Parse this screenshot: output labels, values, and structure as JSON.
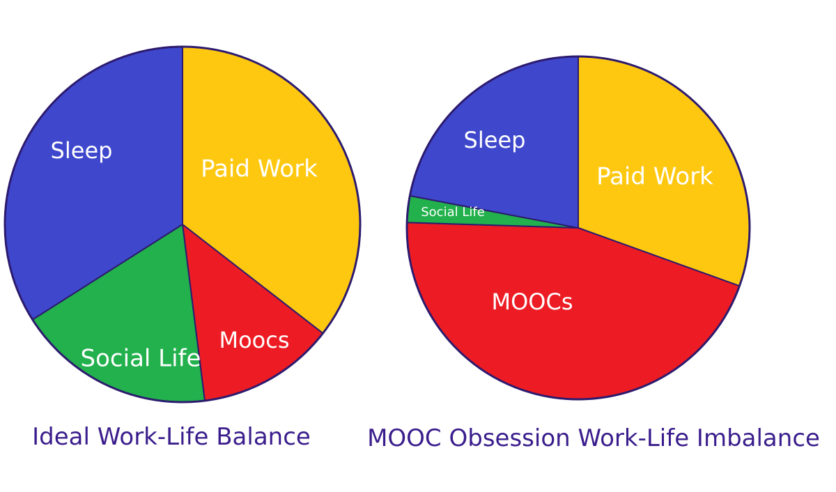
{
  "chart_data": [
    {
      "type": "pie",
      "title": "Ideal Work-Life Balance",
      "start_angle_deg": 0,
      "direction": "clockwise",
      "slices": [
        {
          "label": "Paid Work",
          "value": 35.5,
          "color": "#fec811"
        },
        {
          "label": "Moocs",
          "value": 12.5,
          "color": "#ed1c24"
        },
        {
          "label": "Social Life",
          "value": 18.0,
          "color": "#22b14c"
        },
        {
          "label": "Sleep",
          "value": 34.0,
          "color": "#3f48cc"
        }
      ]
    },
    {
      "type": "pie",
      "title": "MOOC Obsession Work-Life Imbalance",
      "start_angle_deg": 0,
      "direction": "clockwise",
      "slices": [
        {
          "label": "Paid Work",
          "value": 30.5,
          "color": "#fec811"
        },
        {
          "label": "MOOCs",
          "value": 45.0,
          "color": "#ed1c24"
        },
        {
          "label": "Social Life",
          "value": 2.5,
          "color": "#22b14c"
        },
        {
          "label": "Sleep",
          "value": 22.0,
          "color": "#3f48cc"
        }
      ]
    }
  ]
}
